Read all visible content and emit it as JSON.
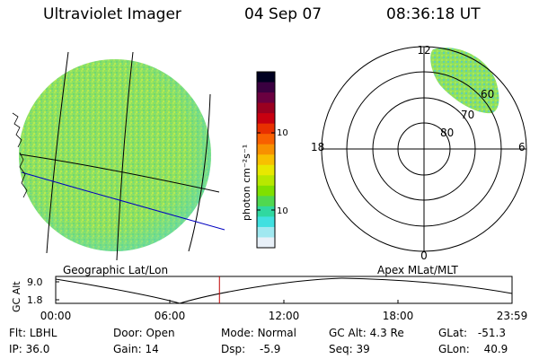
{
  "header": {
    "title": "Ultraviolet Imager",
    "date": "04 Sep 07",
    "time": "08:36:18 UT"
  },
  "colorbar": {
    "label": "photon cm⁻²s⁻¹",
    "ticks": [
      "100",
      "10"
    ],
    "colors": [
      "#000020",
      "#3a0040",
      "#6a0040",
      "#9a0020",
      "#c80010",
      "#e83000",
      "#f86000",
      "#f89000",
      "#f8c000",
      "#e8e800",
      "#b8e800",
      "#80e000",
      "#50d850",
      "#30d8a0",
      "#40e0e0",
      "#a0e8f0",
      "#e8f0f8"
    ]
  },
  "left_panel": {
    "label": "Geographic Lat/Lon"
  },
  "polar_panel": {
    "label": "Apex MLat/MLT",
    "mlt_labels": {
      "top": "12",
      "left": "18",
      "right": "6",
      "bottom": "0"
    },
    "lat_labels": [
      "80",
      "70",
      "60"
    ]
  },
  "timeline": {
    "ylabel": "GC Alt",
    "yticks": [
      "9.0",
      "1.8"
    ],
    "xticks": [
      "00:00",
      "06:00",
      "12:00",
      "18:00",
      "23:59"
    ],
    "marker_time_hours": 8.605
  },
  "info": {
    "filter_label": "Flt:",
    "filter_value": "LBHL",
    "door_label": "Door:",
    "door_value": "Open",
    "mode_label": "Mode:",
    "mode_value": "Normal",
    "gcalt_label": "GC Alt:",
    "gcalt_value": "4.3 Re",
    "glat_label": "GLat:",
    "glat_value": "-51.3",
    "ip_label": "IP:",
    "ip_value": "36.0",
    "gain_label": "Gain:",
    "gain_value": "14",
    "dsp_label": "Dsp:",
    "dsp_value": "-5.9",
    "seq_label": "Seq:",
    "seq_value": "39",
    "glon_label": "GLon:",
    "glon_value": "40.9"
  }
}
